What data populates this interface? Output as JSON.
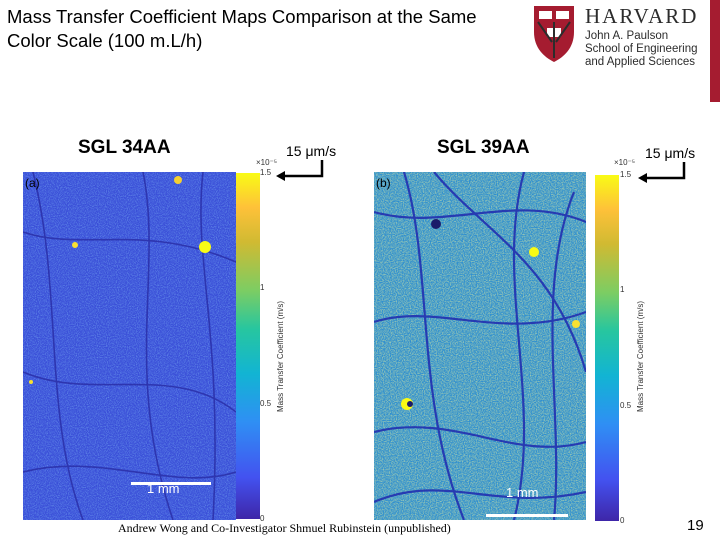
{
  "slide": {
    "title": "Mass Transfer Coefficient Maps Comparison at the Same Color Scale (100 m.L/h)",
    "page_number": "19",
    "credit": "Andrew Wong and Co-Investigator Shmuel Rubinstein (unpublished)"
  },
  "logo": {
    "wordmark": "HARVARD",
    "line1": "John A. Paulson",
    "line2": "School of Engineering",
    "line3": "and Applied Sciences",
    "shield_color": "#a51c30"
  },
  "panels": [
    {
      "sample": "SGL 34AA",
      "label": "(a)",
      "speed": "15 μm/s",
      "scale_bar": "1 mm",
      "map_base": "#3a4fd8"
    },
    {
      "sample": "SGL 39AA",
      "label": "(b)",
      "speed": "15 μm/s",
      "scale_bar": "1 mm",
      "map_base": "#2f8fd0"
    }
  ],
  "colorbar": {
    "exponent": "×10⁻⁵",
    "ticks": [
      "1.5",
      "1",
      "0.5",
      "0"
    ],
    "title": "Mass Transfer Coefficient (m/s)",
    "colors": [
      "#3e26a8",
      "#4352f0",
      "#2f8ff4",
      "#12b4d3",
      "#27c69f",
      "#7ccd63",
      "#d0ba32",
      "#fec139",
      "#f9fb15"
    ]
  }
}
